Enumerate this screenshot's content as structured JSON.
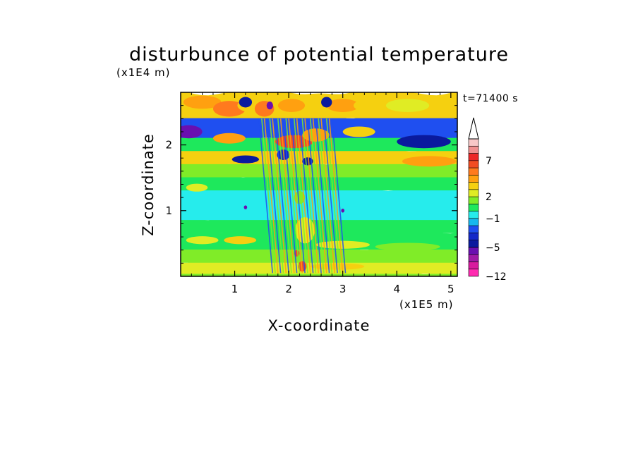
{
  "chart_data": {
    "type": "heatmap",
    "title": "disturbunce of potential temperature",
    "xlabel": "X-coordinate",
    "ylabel": "Z-coordinate",
    "x_unit": "(x1E5 m)",
    "y_unit": "(x1E4 m)",
    "time_label": "t=71400 s",
    "xlim": [
      0,
      5.12
    ],
    "ylim": [
      0,
      2.8
    ],
    "x_ticks": [
      {
        "value": 1,
        "label": "1"
      },
      {
        "value": 2,
        "label": "2"
      },
      {
        "value": 3,
        "label": "3"
      },
      {
        "value": 4,
        "label": "4"
      },
      {
        "value": 5,
        "label": "5"
      }
    ],
    "y_ticks": [
      {
        "value": 1,
        "label": "1"
      },
      {
        "value": 2,
        "label": "2"
      }
    ],
    "colorbar": {
      "levels": [
        -12,
        -10,
        -8,
        -6,
        -5,
        -4,
        -3,
        -2,
        -1,
        0,
        1,
        2,
        3,
        4,
        5,
        6,
        7,
        8,
        10,
        12
      ],
      "colors": [
        "#ff2ab0",
        "#d81a9e",
        "#a01aa6",
        "#6a0fb0",
        "#0a1a9e",
        "#1428c8",
        "#1f4ff0",
        "#17b8ee",
        "#26ecec",
        "#1ee85c",
        "#80ec28",
        "#e0ec24",
        "#f5d010",
        "#ffa010",
        "#ff7a1e",
        "#f24c22",
        "#ec2828",
        "#f09090",
        "#f8c8c8"
      ],
      "extend_max": true,
      "tick_labels": [
        {
          "level": -12,
          "label": "−12"
        },
        {
          "level": -5,
          "label": "−5"
        },
        {
          "level": -1,
          "label": "−1"
        },
        {
          "level": 2,
          "label": "2"
        },
        {
          "level": 7,
          "label": "7"
        }
      ]
    },
    "field": {
      "description": "alternating warm/cold layered wave pattern with strong disturbance near x=1.5-2.8",
      "layers": [
        {
          "z": [
            0.0,
            0.08
          ],
          "value": 1.5
        },
        {
          "z": [
            0.08,
            0.25
          ],
          "value": 2.5
        },
        {
          "z": [
            0.25,
            0.45
          ],
          "value": 1.5
        },
        {
          "z": [
            0.45,
            0.7
          ],
          "value": 0.5
        },
        {
          "z": [
            0.7,
            0.9
          ],
          "value": 0.2
        },
        {
          "z": [
            0.9,
            1.35
          ],
          "value": -0.6
        },
        {
          "z": [
            1.35,
            1.55
          ],
          "value": 0.4
        },
        {
          "z": [
            1.55,
            1.75
          ],
          "value": 1.6
        },
        {
          "z": [
            1.75,
            1.95
          ],
          "value": 3.5
        },
        {
          "z": [
            1.95,
            2.15
          ],
          "value": 0.6
        },
        {
          "z": [
            2.15,
            2.45
          ],
          "value": -2.5
        },
        {
          "z": [
            2.45,
            2.8
          ],
          "value": 3.5
        }
      ]
    }
  }
}
